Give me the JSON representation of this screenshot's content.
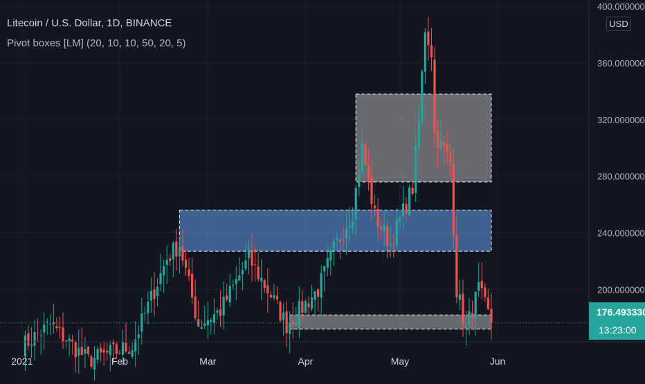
{
  "header": {
    "title": "Litecoin / U.S. Dollar, 1D, BINANCE",
    "indicator": "Pivot boxes [LM] (20, 10, 10, 50, 20, 5)"
  },
  "price_axis": {
    "currency": "USD",
    "last_price": "176.493330",
    "countdown": "13:23:00"
  },
  "colors": {
    "background": "#131722",
    "up": "#26a69a",
    "down": "#ef5350",
    "resistance_box": "#9e9e9e",
    "support_box": "#5b8fd4"
  },
  "chart_data": {
    "type": "candlestick",
    "title": "Litecoin / U.S. Dollar, 1D, BINANCE",
    "x_ticks": [
      "2021",
      "Feb",
      "Mar",
      "Apr",
      "May",
      "Jun"
    ],
    "y_ticks": [
      "400.000000",
      "360.000000",
      "320.000000",
      "280.000000",
      "240.000000",
      "200.000000"
    ],
    "ylim": [
      165,
      402
    ],
    "xlim": [
      "2020-12-25",
      "2021-06-30"
    ],
    "last_price": 176.49333,
    "grid": true,
    "boxes": [
      {
        "name": "upper-pivot-box",
        "color": "gray",
        "x_from": "2021-04-17",
        "x_to": "2021-05-30",
        "y_low": 276,
        "y_high": 338
      },
      {
        "name": "middle-pivot-box",
        "color": "blue",
        "x_from": "2021-02-20",
        "x_to": "2021-05-30",
        "y_low": 227,
        "y_high": 256
      },
      {
        "name": "lower-pivot-box",
        "color": "gray",
        "x_from": "2021-03-27",
        "x_to": "2021-05-30",
        "y_low": 172,
        "y_high": 182
      }
    ],
    "anchors": [
      [
        "2021-01-01",
        160
      ],
      [
        "2021-01-10",
        175
      ],
      [
        "2021-01-22",
        150
      ],
      [
        "2021-02-05",
        160
      ],
      [
        "2021-02-16",
        222
      ],
      [
        "2021-02-20",
        232
      ],
      [
        "2021-02-26",
        175
      ],
      [
        "2021-03-05",
        185
      ],
      [
        "2021-03-14",
        222
      ],
      [
        "2021-03-22",
        192
      ],
      [
        "2021-03-26",
        175
      ],
      [
        "2021-04-05",
        200
      ],
      [
        "2021-04-10",
        228
      ],
      [
        "2021-04-16",
        255
      ],
      [
        "2021-04-19",
        300
      ],
      [
        "2021-04-23",
        252
      ],
      [
        "2021-04-28",
        232
      ],
      [
        "2021-05-05",
        272
      ],
      [
        "2021-05-07",
        318
      ],
      [
        "2021-05-09",
        385
      ],
      [
        "2021-05-11",
        368
      ],
      [
        "2021-05-12",
        310
      ],
      [
        "2021-05-17",
        290
      ],
      [
        "2021-05-19",
        200
      ],
      [
        "2021-05-22",
        172
      ],
      [
        "2021-05-26",
        200
      ],
      [
        "2021-05-30",
        176.49
      ]
    ]
  }
}
